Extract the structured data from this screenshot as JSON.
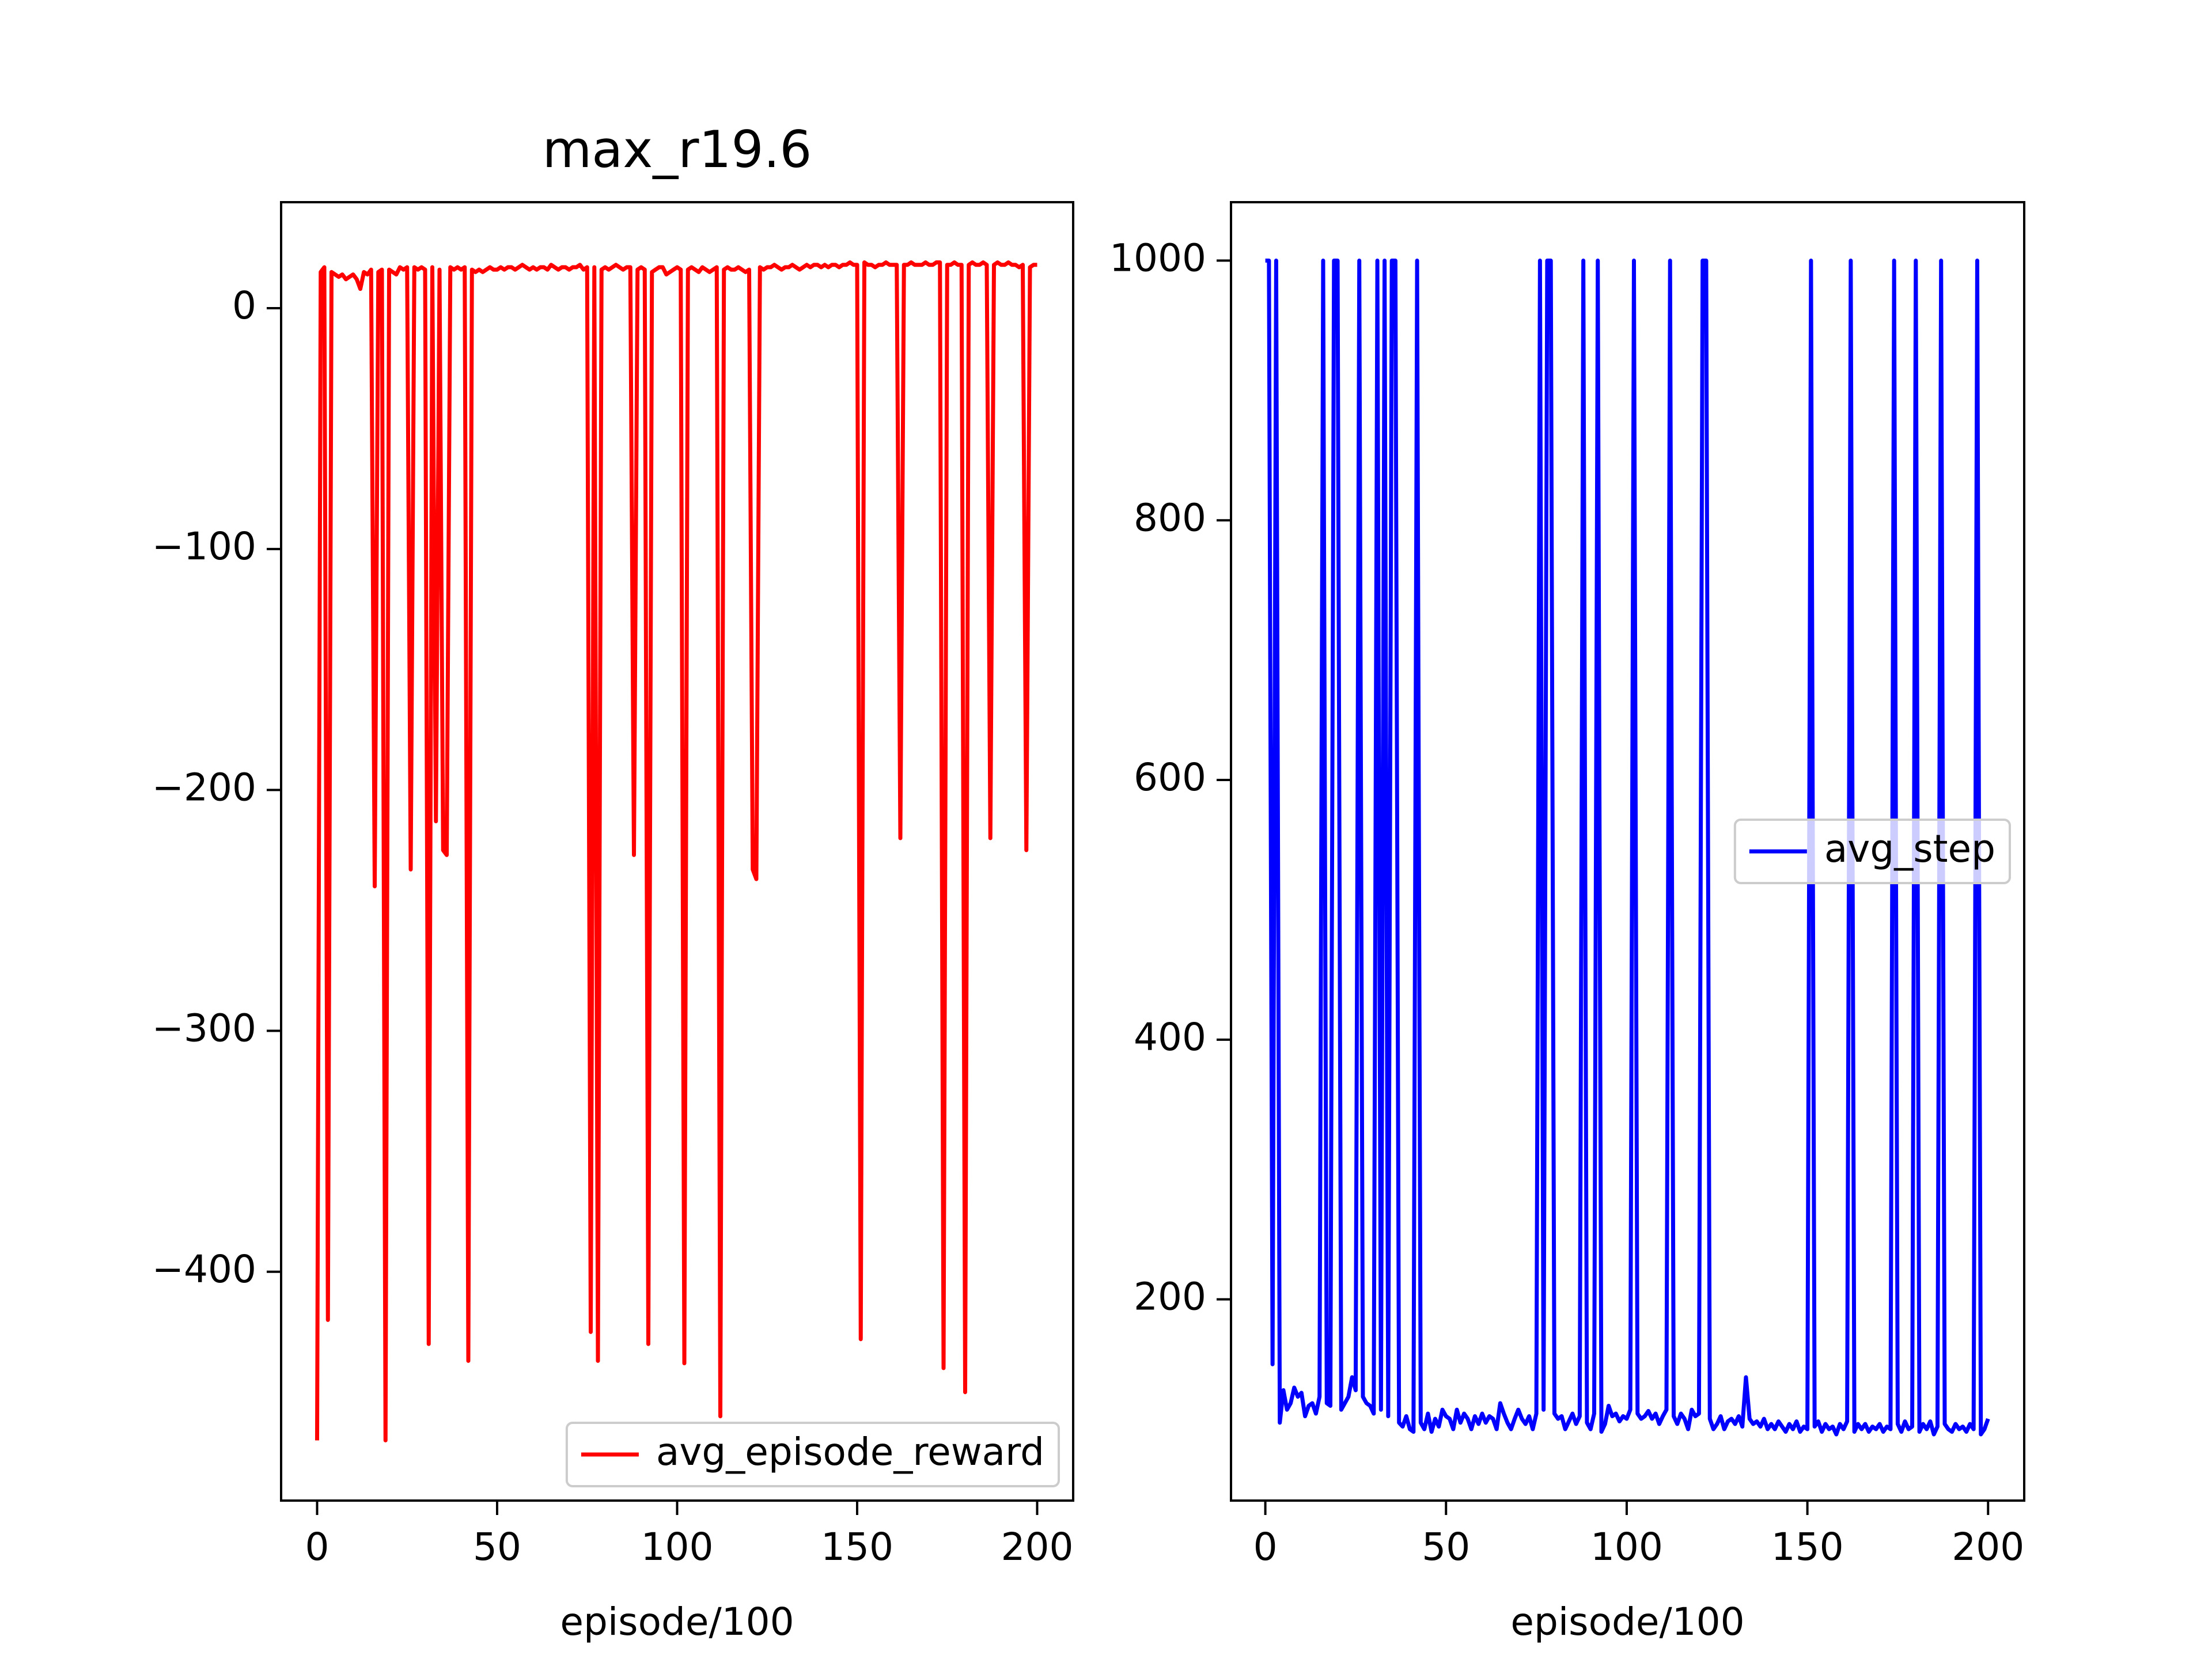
{
  "chart_data": [
    {
      "type": "line",
      "title": "max_r19.6",
      "xlabel": "episode/100",
      "x": [
        0,
        1,
        2,
        3,
        4,
        5,
        6,
        7,
        8,
        9,
        10,
        11,
        12,
        13,
        14,
        15,
        16,
        17,
        18,
        19,
        20,
        21,
        22,
        23,
        24,
        25,
        26,
        27,
        28,
        29,
        30,
        31,
        32,
        33,
        34,
        35,
        36,
        37,
        38,
        39,
        40,
        41,
        42,
        43,
        44,
        45,
        46,
        47,
        48,
        49,
        50,
        51,
        52,
        53,
        54,
        55,
        56,
        57,
        58,
        59,
        60,
        61,
        62,
        63,
        64,
        65,
        66,
        67,
        68,
        69,
        70,
        71,
        72,
        73,
        74,
        75,
        76,
        77,
        78,
        79,
        80,
        81,
        82,
        83,
        84,
        85,
        86,
        87,
        88,
        89,
        90,
        91,
        92,
        93,
        94,
        95,
        96,
        97,
        98,
        99,
        100,
        101,
        102,
        103,
        104,
        105,
        106,
        107,
        108,
        109,
        110,
        111,
        112,
        113,
        114,
        115,
        116,
        117,
        118,
        119,
        120,
        121,
        122,
        123,
        124,
        125,
        126,
        127,
        128,
        129,
        130,
        131,
        132,
        133,
        134,
        135,
        136,
        137,
        138,
        139,
        140,
        141,
        142,
        143,
        144,
        145,
        146,
        147,
        148,
        149,
        150,
        151,
        152,
        153,
        154,
        155,
        156,
        157,
        158,
        159,
        160,
        161,
        162,
        163,
        164,
        165,
        166,
        167,
        168,
        169,
        170,
        171,
        172,
        173,
        174,
        175,
        176,
        177,
        178,
        179,
        180,
        181,
        182,
        183,
        184,
        185,
        186,
        187,
        188,
        189,
        190,
        191,
        192,
        193,
        194,
        195,
        196,
        197,
        198,
        199,
        200
      ],
      "series": [
        {
          "name": "avg_episode_reward",
          "color": "#ff0000",
          "values": [
            -470,
            15,
            17,
            -420,
            15,
            14,
            13,
            14,
            12,
            13,
            14,
            12,
            8,
            15,
            14,
            16,
            -240,
            15,
            16,
            -470,
            16,
            15,
            14,
            17,
            16,
            17,
            -233,
            17,
            16,
            17,
            16,
            -430,
            17,
            -213,
            16,
            -225,
            -227,
            17,
            16,
            17,
            16,
            17,
            -437,
            16,
            15,
            16,
            15,
            16,
            17,
            16,
            16,
            17,
            16,
            17,
            17,
            16,
            17,
            18,
            17,
            16,
            17,
            16,
            17,
            17,
            16,
            18,
            17,
            16,
            17,
            17,
            16,
            17,
            17,
            18,
            16,
            17,
            -425,
            17,
            -437,
            16,
            17,
            16,
            17,
            18,
            17,
            16,
            17,
            17,
            -227,
            16,
            17,
            16,
            -430,
            15,
            16,
            17,
            17,
            14,
            15,
            16,
            17,
            16,
            -438,
            16,
            17,
            16,
            15,
            17,
            16,
            15,
            16,
            17,
            -460,
            16,
            17,
            16,
            16,
            17,
            16,
            15,
            16,
            -233,
            -237,
            17,
            16,
            17,
            17,
            18,
            17,
            16,
            17,
            17,
            18,
            17,
            16,
            17,
            18,
            17,
            18,
            18,
            17,
            18,
            17,
            18,
            18,
            17,
            18,
            18,
            19,
            18,
            18,
            -428,
            19,
            18,
            18,
            17,
            18,
            18,
            19,
            18,
            18,
            18,
            -220,
            18,
            18,
            19,
            18,
            18,
            18,
            19,
            18,
            18,
            19,
            19,
            -440,
            18,
            18,
            19,
            18,
            18,
            -450,
            18,
            19,
            18,
            18,
            19,
            18,
            -220,
            18,
            19,
            18,
            18,
            19,
            18,
            18,
            17,
            18,
            -225,
            17,
            18,
            18
          ]
        }
      ],
      "xlim": [
        -10,
        210
      ],
      "ylim": [
        -495,
        44
      ],
      "xticks": [
        0,
        50,
        100,
        150,
        200
      ],
      "yticks": [
        {
          "value": -400,
          "label": "−400"
        },
        {
          "value": -300,
          "label": "−300"
        },
        {
          "value": -200,
          "label": "−200"
        },
        {
          "value": -100,
          "label": "−100"
        },
        0
      ],
      "legend": "lower right"
    },
    {
      "type": "line",
      "xlabel": "episode/100",
      "x": [
        0,
        1,
        2,
        3,
        4,
        5,
        6,
        7,
        8,
        9,
        10,
        11,
        12,
        13,
        14,
        15,
        16,
        17,
        18,
        19,
        20,
        21,
        22,
        23,
        24,
        25,
        26,
        27,
        28,
        29,
        30,
        31,
        32,
        33,
        34,
        35,
        36,
        37,
        38,
        39,
        40,
        41,
        42,
        43,
        44,
        45,
        46,
        47,
        48,
        49,
        50,
        51,
        52,
        53,
        54,
        55,
        56,
        57,
        58,
        59,
        60,
        61,
        62,
        63,
        64,
        65,
        66,
        67,
        68,
        69,
        70,
        71,
        72,
        73,
        74,
        75,
        76,
        77,
        78,
        79,
        80,
        81,
        82,
        83,
        84,
        85,
        86,
        87,
        88,
        89,
        90,
        91,
        92,
        93,
        94,
        95,
        96,
        97,
        98,
        99,
        100,
        101,
        102,
        103,
        104,
        105,
        106,
        107,
        108,
        109,
        110,
        111,
        112,
        113,
        114,
        115,
        116,
        117,
        118,
        119,
        120,
        121,
        122,
        123,
        124,
        125,
        126,
        127,
        128,
        129,
        130,
        131,
        132,
        133,
        134,
        135,
        136,
        137,
        138,
        139,
        140,
        141,
        142,
        143,
        144,
        145,
        146,
        147,
        148,
        149,
        150,
        151,
        152,
        153,
        154,
        155,
        156,
        157,
        158,
        159,
        160,
        161,
        162,
        163,
        164,
        165,
        166,
        167,
        168,
        169,
        170,
        171,
        172,
        173,
        174,
        175,
        176,
        177,
        178,
        179,
        180,
        181,
        182,
        183,
        184,
        185,
        186,
        187,
        188,
        189,
        190,
        191,
        192,
        193,
        194,
        195,
        196,
        197,
        198,
        199,
        200
      ],
      "series": [
        {
          "name": "avg_step",
          "color": "#0000ff",
          "values": [
            1000,
            1000,
            150,
            1000,
            105,
            130,
            115,
            120,
            132,
            125,
            128,
            110,
            118,
            120,
            112,
            125,
            1000,
            120,
            118,
            1000,
            1000,
            115,
            120,
            125,
            140,
            130,
            1000,
            125,
            120,
            118,
            112,
            1000,
            115,
            1000,
            110,
            1000,
            1000,
            105,
            102,
            110,
            100,
            98,
            1000,
            105,
            100,
            112,
            98,
            108,
            102,
            115,
            110,
            108,
            100,
            115,
            105,
            112,
            108,
            100,
            110,
            104,
            112,
            105,
            110,
            108,
            100,
            120,
            112,
            105,
            100,
            108,
            115,
            108,
            104,
            110,
            100,
            112,
            1000,
            115,
            1000,
            1000,
            112,
            108,
            110,
            100,
            106,
            112,
            104,
            110,
            1000,
            105,
            100,
            112,
            1000,
            98,
            104,
            118,
            110,
            112,
            106,
            110,
            108,
            115,
            1000,
            112,
            108,
            110,
            114,
            108,
            112,
            104,
            110,
            115,
            1000,
            110,
            104,
            112,
            108,
            100,
            115,
            110,
            112,
            1000,
            1000,
            108,
            100,
            104,
            110,
            100,
            106,
            108,
            104,
            110,
            102,
            140,
            108,
            104,
            106,
            102,
            108,
            100,
            104,
            100,
            106,
            102,
            98,
            104,
            100,
            106,
            98,
            102,
            100,
            1000,
            102,
            106,
            98,
            104,
            100,
            102,
            96,
            104,
            100,
            106,
            1000,
            98,
            104,
            100,
            104,
            98,
            102,
            100,
            104,
            98,
            102,
            100,
            1000,
            104,
            98,
            106,
            100,
            102,
            1000,
            98,
            104,
            100,
            106,
            96,
            102,
            1000,
            104,
            100,
            98,
            104,
            100,
            102,
            98,
            104,
            100,
            1000,
            96,
            100,
            108
          ]
        }
      ],
      "xlim": [
        -9.5,
        210
      ],
      "ylim": [
        45,
        1045
      ],
      "xticks": [
        0,
        50,
        100,
        150,
        200
      ],
      "yticks": [
        200,
        400,
        600,
        800,
        1000
      ],
      "legend": "center right"
    }
  ]
}
